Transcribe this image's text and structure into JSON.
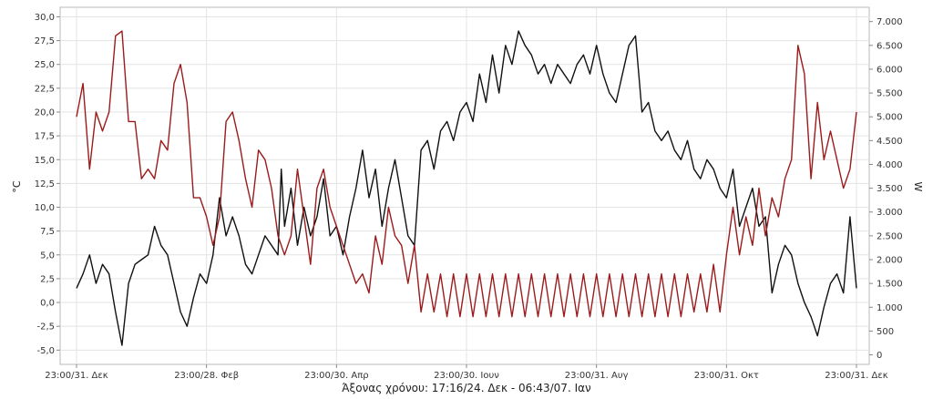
{
  "chart_data": {
    "type": "line",
    "x_axis_caption": "Άξονας χρόνου: 17:16/24. Δεκ - 06:43/07. Ιαν",
    "x_tick_labels": [
      "23:00/31. Δεκ",
      "23:00/28. Φεβ",
      "23:00/30. Απρ",
      "23:00/30. Ιουν",
      "23:00/31. Αυγ",
      "23:00/31. Οκτ",
      "23:00/31. Δεκ"
    ],
    "left_axis": {
      "label": "°C",
      "ylim": [
        -6.5,
        31
      ],
      "ticks": [
        "-5,0",
        "-2,5",
        "0,0",
        "2,5",
        "5,0",
        "7,5",
        "10,0",
        "12,5",
        "15,0",
        "17,5",
        "20,0",
        "22,5",
        "25,0",
        "27,5",
        "30,0"
      ],
      "tick_values": [
        -5,
        -2.5,
        0,
        2.5,
        5,
        7.5,
        10,
        12.5,
        15,
        17.5,
        20,
        22.5,
        25,
        27.5,
        30
      ]
    },
    "right_axis": {
      "label": "W",
      "ylim": [
        -200,
        7300
      ],
      "ticks": [
        "0",
        "500",
        "1.000",
        "1.500",
        "2.000",
        "2.500",
        "3.000",
        "3.500",
        "4.000",
        "4.500",
        "5.000",
        "5.500",
        "6.000",
        "6.500",
        "7.000"
      ],
      "tick_values": [
        0,
        500,
        1000,
        1500,
        2000,
        2500,
        3000,
        3500,
        4000,
        4500,
        5000,
        5500,
        6000,
        6500,
        7000
      ]
    },
    "x_range": [
      0,
      12
    ],
    "grid": true,
    "series": [
      {
        "color": "#111111",
        "axis": "left",
        "points": [
          [
            0,
            1.5
          ],
          [
            0.1,
            3
          ],
          [
            0.2,
            5
          ],
          [
            0.3,
            2
          ],
          [
            0.4,
            4
          ],
          [
            0.5,
            3
          ],
          [
            0.6,
            -1
          ],
          [
            0.7,
            -4.5
          ],
          [
            0.8,
            2
          ],
          [
            0.9,
            4
          ],
          [
            1,
            4.5
          ],
          [
            1.1,
            5
          ],
          [
            1.2,
            8
          ],
          [
            1.3,
            6
          ],
          [
            1.4,
            5
          ],
          [
            1.5,
            2
          ],
          [
            1.6,
            -1
          ],
          [
            1.7,
            -2.5
          ],
          [
            1.8,
            0.5
          ],
          [
            1.9,
            3
          ],
          [
            2,
            2
          ],
          [
            2.1,
            5
          ],
          [
            2.2,
            11
          ],
          [
            2.3,
            7
          ],
          [
            2.4,
            9
          ],
          [
            2.5,
            7
          ],
          [
            2.6,
            4
          ],
          [
            2.7,
            3
          ],
          [
            2.8,
            5
          ],
          [
            2.9,
            7
          ],
          [
            3,
            6
          ],
          [
            3.1,
            5
          ],
          [
            3.15,
            14
          ],
          [
            3.2,
            8
          ],
          [
            3.3,
            12
          ],
          [
            3.4,
            6
          ],
          [
            3.5,
            10
          ],
          [
            3.6,
            7
          ],
          [
            3.7,
            9
          ],
          [
            3.8,
            13
          ],
          [
            3.9,
            7
          ],
          [
            4,
            8
          ],
          [
            4.1,
            5
          ],
          [
            4.2,
            9
          ],
          [
            4.3,
            12
          ],
          [
            4.4,
            16
          ],
          [
            4.5,
            11
          ],
          [
            4.6,
            14
          ],
          [
            4.7,
            8
          ],
          [
            4.8,
            12
          ],
          [
            4.9,
            15
          ],
          [
            5,
            11
          ],
          [
            5.1,
            7
          ],
          [
            5.2,
            6
          ],
          [
            5.3,
            16
          ],
          [
            5.4,
            17
          ],
          [
            5.5,
            14
          ],
          [
            5.6,
            18
          ],
          [
            5.7,
            19
          ],
          [
            5.8,
            17
          ],
          [
            5.9,
            20
          ],
          [
            6,
            21
          ],
          [
            6.1,
            19
          ],
          [
            6.2,
            24
          ],
          [
            6.3,
            21
          ],
          [
            6.4,
            26
          ],
          [
            6.5,
            22
          ],
          [
            6.6,
            27
          ],
          [
            6.7,
            25
          ],
          [
            6.8,
            28.5
          ],
          [
            6.9,
            27
          ],
          [
            7,
            26
          ],
          [
            7.1,
            24
          ],
          [
            7.2,
            25
          ],
          [
            7.3,
            23
          ],
          [
            7.4,
            25
          ],
          [
            7.5,
            24
          ],
          [
            7.6,
            23
          ],
          [
            7.7,
            25
          ],
          [
            7.8,
            26
          ],
          [
            7.9,
            24
          ],
          [
            8,
            27
          ],
          [
            8.1,
            24
          ],
          [
            8.2,
            22
          ],
          [
            8.3,
            21
          ],
          [
            8.4,
            24
          ],
          [
            8.5,
            27
          ],
          [
            8.6,
            28
          ],
          [
            8.7,
            20
          ],
          [
            8.8,
            21
          ],
          [
            8.9,
            18
          ],
          [
            9,
            17
          ],
          [
            9.1,
            18
          ],
          [
            9.2,
            16
          ],
          [
            9.3,
            15
          ],
          [
            9.4,
            17
          ],
          [
            9.5,
            14
          ],
          [
            9.6,
            13
          ],
          [
            9.7,
            15
          ],
          [
            9.8,
            14
          ],
          [
            9.9,
            12
          ],
          [
            10,
            11
          ],
          [
            10.1,
            14
          ],
          [
            10.2,
            8
          ],
          [
            10.3,
            10
          ],
          [
            10.4,
            12
          ],
          [
            10.5,
            8
          ],
          [
            10.6,
            9
          ],
          [
            10.7,
            1
          ],
          [
            10.8,
            4
          ],
          [
            10.9,
            6
          ],
          [
            11,
            5
          ],
          [
            11.1,
            2
          ],
          [
            11.2,
            0
          ],
          [
            11.3,
            -1.5
          ],
          [
            11.4,
            -3.5
          ],
          [
            11.5,
            -0.5
          ],
          [
            11.6,
            2
          ],
          [
            11.7,
            3
          ],
          [
            11.8,
            1
          ],
          [
            11.9,
            9
          ],
          [
            12,
            1.5
          ]
        ]
      },
      {
        "color": "#9b1b1b",
        "axis": "left",
        "points": [
          [
            0,
            19.5
          ],
          [
            0.1,
            23
          ],
          [
            0.2,
            14
          ],
          [
            0.3,
            20
          ],
          [
            0.4,
            18
          ],
          [
            0.5,
            20
          ],
          [
            0.6,
            28
          ],
          [
            0.7,
            28.5
          ],
          [
            0.8,
            19
          ],
          [
            0.9,
            19
          ],
          [
            1,
            13
          ],
          [
            1.1,
            14
          ],
          [
            1.2,
            13
          ],
          [
            1.3,
            17
          ],
          [
            1.4,
            16
          ],
          [
            1.5,
            23
          ],
          [
            1.6,
            25
          ],
          [
            1.7,
            21
          ],
          [
            1.8,
            11
          ],
          [
            1.9,
            11
          ],
          [
            2,
            9
          ],
          [
            2.1,
            6
          ],
          [
            2.2,
            9
          ],
          [
            2.3,
            19
          ],
          [
            2.4,
            20
          ],
          [
            2.5,
            17
          ],
          [
            2.6,
            13
          ],
          [
            2.7,
            10
          ],
          [
            2.8,
            16
          ],
          [
            2.9,
            15
          ],
          [
            3,
            12
          ],
          [
            3.1,
            7
          ],
          [
            3.2,
            5
          ],
          [
            3.3,
            7
          ],
          [
            3.4,
            14
          ],
          [
            3.5,
            9
          ],
          [
            3.6,
            4
          ],
          [
            3.7,
            12
          ],
          [
            3.8,
            14
          ],
          [
            3.9,
            10
          ],
          [
            4,
            8
          ],
          [
            4.1,
            6
          ],
          [
            4.2,
            4
          ],
          [
            4.3,
            2
          ],
          [
            4.4,
            3
          ],
          [
            4.5,
            1
          ],
          [
            4.6,
            7
          ],
          [
            4.7,
            4
          ],
          [
            4.8,
            10
          ],
          [
            4.9,
            7
          ],
          [
            5,
            6
          ],
          [
            5.1,
            2
          ],
          [
            5.2,
            6
          ],
          [
            5.3,
            -1
          ],
          [
            5.4,
            3
          ],
          [
            5.5,
            -1
          ],
          [
            5.6,
            3
          ],
          [
            5.7,
            -1.5
          ],
          [
            5.8,
            3
          ],
          [
            5.9,
            -1.5
          ],
          [
            6,
            3
          ],
          [
            6.1,
            -1.5
          ],
          [
            6.2,
            3
          ],
          [
            6.3,
            -1.5
          ],
          [
            6.4,
            3
          ],
          [
            6.5,
            -1.5
          ],
          [
            6.6,
            3
          ],
          [
            6.7,
            -1.5
          ],
          [
            6.8,
            3
          ],
          [
            6.9,
            -1.5
          ],
          [
            7,
            3
          ],
          [
            7.1,
            -1.5
          ],
          [
            7.2,
            3
          ],
          [
            7.3,
            -1.5
          ],
          [
            7.4,
            3
          ],
          [
            7.5,
            -1.5
          ],
          [
            7.6,
            3
          ],
          [
            7.7,
            -1.5
          ],
          [
            7.8,
            3
          ],
          [
            7.9,
            -1.5
          ],
          [
            8,
            3
          ],
          [
            8.1,
            -1.5
          ],
          [
            8.2,
            3
          ],
          [
            8.3,
            -1.5
          ],
          [
            8.4,
            3
          ],
          [
            8.5,
            -1.5
          ],
          [
            8.6,
            3
          ],
          [
            8.7,
            -1.5
          ],
          [
            8.8,
            3
          ],
          [
            8.9,
            -1.5
          ],
          [
            9,
            3
          ],
          [
            9.1,
            -1.5
          ],
          [
            9.2,
            3
          ],
          [
            9.3,
            -1.5
          ],
          [
            9.4,
            3
          ],
          [
            9.5,
            -1
          ],
          [
            9.6,
            3
          ],
          [
            9.7,
            -1
          ],
          [
            9.8,
            4
          ],
          [
            9.9,
            -1
          ],
          [
            10,
            5
          ],
          [
            10.1,
            10
          ],
          [
            10.2,
            5
          ],
          [
            10.3,
            9
          ],
          [
            10.4,
            6
          ],
          [
            10.5,
            12
          ],
          [
            10.6,
            7
          ],
          [
            10.7,
            11
          ],
          [
            10.8,
            9
          ],
          [
            10.9,
            13
          ],
          [
            11,
            15
          ],
          [
            11.1,
            27
          ],
          [
            11.2,
            24
          ],
          [
            11.3,
            13
          ],
          [
            11.4,
            21
          ],
          [
            11.5,
            15
          ],
          [
            11.6,
            18
          ],
          [
            11.7,
            15
          ],
          [
            11.8,
            12
          ],
          [
            11.9,
            14
          ],
          [
            12,
            20
          ]
        ]
      }
    ]
  }
}
